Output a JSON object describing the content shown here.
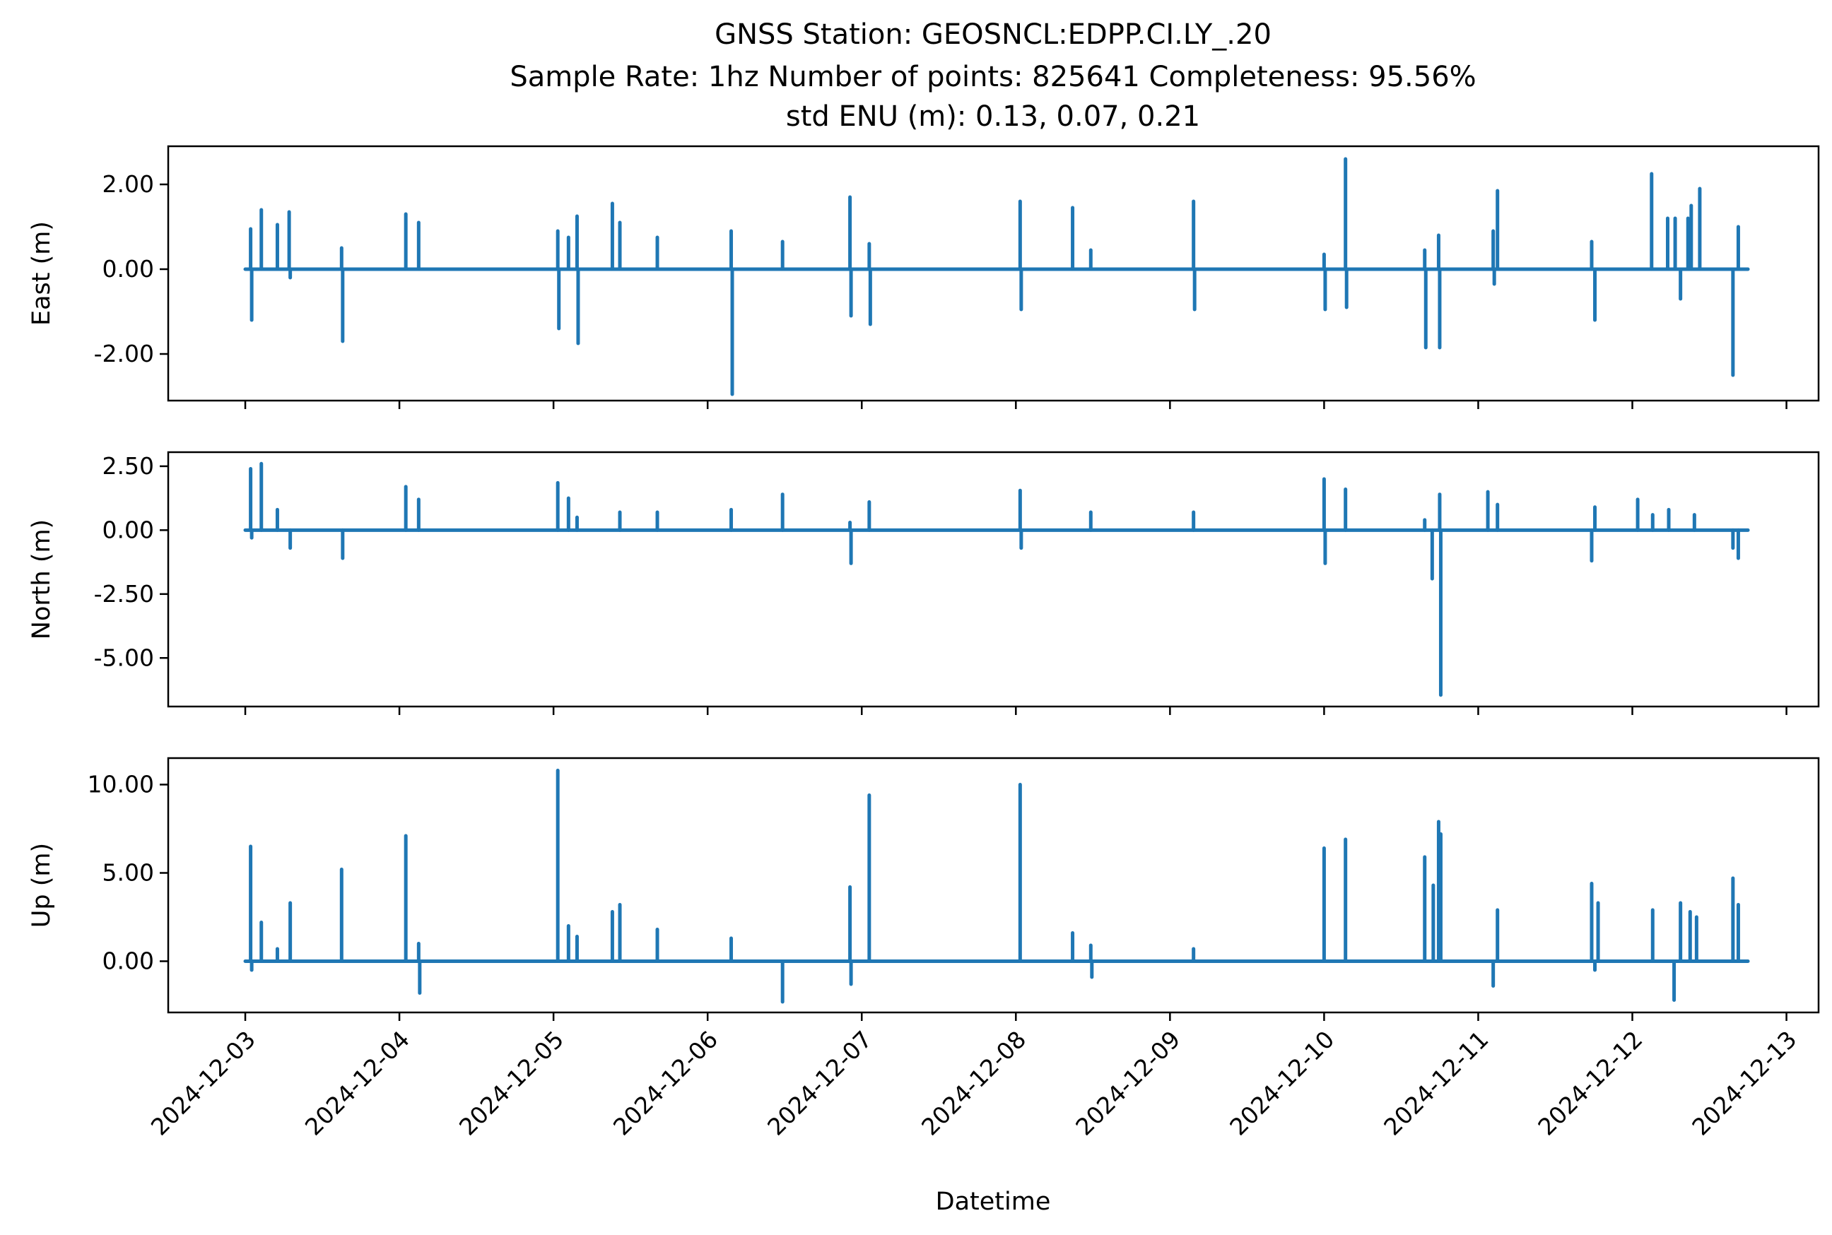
{
  "figure": {
    "title_lines": [
      "GNSS Station: GEOSNCL:EDPP.CI.LY_.20",
      "Sample Rate: 1hz   Number of points: 825641    Completeness:  95.56%",
      "std ENU (m):  0.13, 0.07, 0.21"
    ],
    "xlabel": "Datetime",
    "x_tick_labels": [
      "2024-12-03",
      "2024-12-04",
      "2024-12-05",
      "2024-12-06",
      "2024-12-07",
      "2024-12-08",
      "2024-12-09",
      "2024-12-10",
      "2024-12-11",
      "2024-12-12",
      "2024-12-13"
    ]
  },
  "chart_data": [
    {
      "type": "line",
      "ylabel": "East (m)",
      "xlim": [
        "2024-12-02 12:00",
        "2024-12-13 05:00"
      ],
      "ylim": [
        -3.1,
        2.9
      ],
      "y_tick_values": [
        -2.0,
        0.0,
        2.0
      ],
      "y_tick_labels": [
        "-2.00",
        "0.00",
        "2.00"
      ],
      "line_color": "#1f77b4",
      "x_range": [
        "2024-12-03 00:00",
        "2024-12-12 18:00"
      ],
      "spikes": [
        {
          "t": "2024-12-03 00:50",
          "y": 0.95
        },
        {
          "t": "2024-12-03 01:00",
          "y": -1.2
        },
        {
          "t": "2024-12-03 02:30",
          "y": 1.4
        },
        {
          "t": "2024-12-03 05:00",
          "y": 1.05
        },
        {
          "t": "2024-12-03 06:50",
          "y": 1.35
        },
        {
          "t": "2024-12-03 07:00",
          "y": -0.2
        },
        {
          "t": "2024-12-03 15:00",
          "y": 0.5
        },
        {
          "t": "2024-12-03 15:10",
          "y": -1.7
        },
        {
          "t": "2024-12-04 01:00",
          "y": 1.3
        },
        {
          "t": "2024-12-04 03:00",
          "y": 1.1
        },
        {
          "t": "2024-12-05 00:40",
          "y": 0.9
        },
        {
          "t": "2024-12-05 00:50",
          "y": -1.4
        },
        {
          "t": "2024-12-05 02:20",
          "y": 0.75
        },
        {
          "t": "2024-12-05 03:40",
          "y": 1.25
        },
        {
          "t": "2024-12-05 03:50",
          "y": -1.75
        },
        {
          "t": "2024-12-05 09:10",
          "y": 1.55
        },
        {
          "t": "2024-12-05 10:20",
          "y": 1.1
        },
        {
          "t": "2024-12-05 16:10",
          "y": 0.75
        },
        {
          "t": "2024-12-06 03:40",
          "y": 0.9
        },
        {
          "t": "2024-12-06 03:50",
          "y": -2.95
        },
        {
          "t": "2024-12-06 11:40",
          "y": 0.65
        },
        {
          "t": "2024-12-06 22:10",
          "y": 1.7
        },
        {
          "t": "2024-12-06 22:20",
          "y": -1.1
        },
        {
          "t": "2024-12-07 01:10",
          "y": 0.6
        },
        {
          "t": "2024-12-07 01:20",
          "y": -1.3
        },
        {
          "t": "2024-12-08 00:40",
          "y": 1.6
        },
        {
          "t": "2024-12-08 00:50",
          "y": -0.95
        },
        {
          "t": "2024-12-08 08:50",
          "y": 1.45
        },
        {
          "t": "2024-12-08 11:40",
          "y": 0.45
        },
        {
          "t": "2024-12-09 03:40",
          "y": 1.6
        },
        {
          "t": "2024-12-09 03:50",
          "y": -0.95
        },
        {
          "t": "2024-12-10 00:00",
          "y": 0.35
        },
        {
          "t": "2024-12-10 00:10",
          "y": -0.95
        },
        {
          "t": "2024-12-10 03:20",
          "y": 2.6
        },
        {
          "t": "2024-12-10 03:30",
          "y": -0.9
        },
        {
          "t": "2024-12-10 15:40",
          "y": 0.45
        },
        {
          "t": "2024-12-10 15:50",
          "y": -1.85
        },
        {
          "t": "2024-12-10 17:50",
          "y": 0.8
        },
        {
          "t": "2024-12-10 18:00",
          "y": -1.85
        },
        {
          "t": "2024-12-11 02:20",
          "y": 0.9
        },
        {
          "t": "2024-12-11 02:30",
          "y": -0.35
        },
        {
          "t": "2024-12-11 03:00",
          "y": 1.85
        },
        {
          "t": "2024-12-11 17:40",
          "y": 0.65
        },
        {
          "t": "2024-12-11 18:10",
          "y": -1.2
        },
        {
          "t": "2024-12-12 03:00",
          "y": 2.25
        },
        {
          "t": "2024-12-12 05:30",
          "y": 1.2
        },
        {
          "t": "2024-12-12 06:40",
          "y": 1.2
        },
        {
          "t": "2024-12-12 07:30",
          "y": -0.7
        },
        {
          "t": "2024-12-12 08:40",
          "y": 1.2
        },
        {
          "t": "2024-12-12 09:10",
          "y": 1.5
        },
        {
          "t": "2024-12-12 10:30",
          "y": 1.9
        },
        {
          "t": "2024-12-12 15:40",
          "y": -2.5
        },
        {
          "t": "2024-12-12 16:30",
          "y": 1.0
        }
      ]
    },
    {
      "type": "line",
      "ylabel": "North (m)",
      "xlim": [
        "2024-12-02 12:00",
        "2024-12-13 05:00"
      ],
      "ylim": [
        -6.9,
        3.05
      ],
      "y_tick_values": [
        -5.0,
        -2.5,
        0.0,
        2.5
      ],
      "y_tick_labels": [
        "-5.00",
        "-2.50",
        "0.00",
        "2.50"
      ],
      "line_color": "#1f77b4",
      "x_range": [
        "2024-12-03 00:00",
        "2024-12-12 18:00"
      ],
      "spikes": [
        {
          "t": "2024-12-03 00:50",
          "y": 2.4
        },
        {
          "t": "2024-12-03 01:00",
          "y": -0.3
        },
        {
          "t": "2024-12-03 02:30",
          "y": 2.6
        },
        {
          "t": "2024-12-03 05:00",
          "y": 0.8
        },
        {
          "t": "2024-12-03 07:00",
          "y": -0.7
        },
        {
          "t": "2024-12-03 15:10",
          "y": -1.1
        },
        {
          "t": "2024-12-04 01:00",
          "y": 1.7
        },
        {
          "t": "2024-12-04 03:00",
          "y": 1.2
        },
        {
          "t": "2024-12-05 00:40",
          "y": 1.85
        },
        {
          "t": "2024-12-05 02:20",
          "y": 1.25
        },
        {
          "t": "2024-12-05 03:40",
          "y": 0.5
        },
        {
          "t": "2024-12-05 10:20",
          "y": 0.7
        },
        {
          "t": "2024-12-05 16:10",
          "y": 0.7
        },
        {
          "t": "2024-12-06 03:40",
          "y": 0.8
        },
        {
          "t": "2024-12-06 11:40",
          "y": 1.4
        },
        {
          "t": "2024-12-06 22:10",
          "y": 0.3
        },
        {
          "t": "2024-12-06 22:20",
          "y": -1.3
        },
        {
          "t": "2024-12-07 01:10",
          "y": 1.1
        },
        {
          "t": "2024-12-08 00:40",
          "y": 1.55
        },
        {
          "t": "2024-12-08 00:50",
          "y": -0.7
        },
        {
          "t": "2024-12-08 11:40",
          "y": 0.7
        },
        {
          "t": "2024-12-09 03:40",
          "y": 0.7
        },
        {
          "t": "2024-12-10 00:00",
          "y": 2.0
        },
        {
          "t": "2024-12-10 00:10",
          "y": -1.3
        },
        {
          "t": "2024-12-10 03:20",
          "y": 1.6
        },
        {
          "t": "2024-12-10 15:40",
          "y": 0.4
        },
        {
          "t": "2024-12-10 16:50",
          "y": -1.9
        },
        {
          "t": "2024-12-10 18:00",
          "y": 1.4
        },
        {
          "t": "2024-12-10 18:10",
          "y": -6.45
        },
        {
          "t": "2024-12-11 01:30",
          "y": 1.5
        },
        {
          "t": "2024-12-11 03:00",
          "y": 1.0
        },
        {
          "t": "2024-12-11 17:40",
          "y": -1.2
        },
        {
          "t": "2024-12-11 18:10",
          "y": 0.9
        },
        {
          "t": "2024-12-12 00:50",
          "y": 1.2
        },
        {
          "t": "2024-12-12 03:10",
          "y": 0.6
        },
        {
          "t": "2024-12-12 05:40",
          "y": 0.8
        },
        {
          "t": "2024-12-12 09:40",
          "y": 0.6
        },
        {
          "t": "2024-12-12 15:40",
          "y": -0.7
        },
        {
          "t": "2024-12-12 16:30",
          "y": -1.1
        }
      ]
    },
    {
      "type": "line",
      "ylabel": "Up (m)",
      "xlim": [
        "2024-12-02 12:00",
        "2024-12-13 05:00"
      ],
      "ylim": [
        -2.9,
        11.5
      ],
      "y_tick_values": [
        0.0,
        5.0,
        10.0
      ],
      "y_tick_labels": [
        "0.00",
        "5.00",
        "10.00"
      ],
      "line_color": "#1f77b4",
      "x_range": [
        "2024-12-03 00:00",
        "2024-12-12 18:00"
      ],
      "spikes": [
        {
          "t": "2024-12-03 00:50",
          "y": 6.5
        },
        {
          "t": "2024-12-03 01:00",
          "y": -0.5
        },
        {
          "t": "2024-12-03 02:30",
          "y": 2.2
        },
        {
          "t": "2024-12-03 05:00",
          "y": 0.7
        },
        {
          "t": "2024-12-03 07:00",
          "y": 3.3
        },
        {
          "t": "2024-12-03 15:00",
          "y": 5.2
        },
        {
          "t": "2024-12-04 01:00",
          "y": 7.1
        },
        {
          "t": "2024-12-04 03:00",
          "y": 1.0
        },
        {
          "t": "2024-12-04 03:10",
          "y": -1.8
        },
        {
          "t": "2024-12-05 00:40",
          "y": 10.8
        },
        {
          "t": "2024-12-05 02:20",
          "y": 2.0
        },
        {
          "t": "2024-12-05 03:40",
          "y": 1.4
        },
        {
          "t": "2024-12-05 09:10",
          "y": 2.8
        },
        {
          "t": "2024-12-05 10:20",
          "y": 3.2
        },
        {
          "t": "2024-12-05 16:10",
          "y": 1.8
        },
        {
          "t": "2024-12-06 03:40",
          "y": 1.3
        },
        {
          "t": "2024-12-06 11:40",
          "y": -2.3
        },
        {
          "t": "2024-12-06 22:10",
          "y": 4.2
        },
        {
          "t": "2024-12-06 22:20",
          "y": -1.3
        },
        {
          "t": "2024-12-07 01:10",
          "y": 9.4
        },
        {
          "t": "2024-12-08 00:40",
          "y": 10.0
        },
        {
          "t": "2024-12-08 08:50",
          "y": 1.6
        },
        {
          "t": "2024-12-08 11:40",
          "y": 0.9
        },
        {
          "t": "2024-12-08 11:50",
          "y": -0.9
        },
        {
          "t": "2024-12-09 03:40",
          "y": 0.7
        },
        {
          "t": "2024-12-10 00:00",
          "y": 6.4
        },
        {
          "t": "2024-12-10 03:20",
          "y": 6.9
        },
        {
          "t": "2024-12-10 15:40",
          "y": 5.9
        },
        {
          "t": "2024-12-10 17:00",
          "y": 4.3
        },
        {
          "t": "2024-12-10 17:50",
          "y": 7.9
        },
        {
          "t": "2024-12-10 18:10",
          "y": 7.2
        },
        {
          "t": "2024-12-11 02:20",
          "y": -1.4
        },
        {
          "t": "2024-12-11 03:00",
          "y": 2.9
        },
        {
          "t": "2024-12-11 17:40",
          "y": 4.4
        },
        {
          "t": "2024-12-11 18:10",
          "y": -0.5
        },
        {
          "t": "2024-12-11 18:40",
          "y": 3.3
        },
        {
          "t": "2024-12-12 03:10",
          "y": 2.9
        },
        {
          "t": "2024-12-12 06:30",
          "y": -2.2
        },
        {
          "t": "2024-12-12 07:30",
          "y": 3.3
        },
        {
          "t": "2024-12-12 09:00",
          "y": 2.8
        },
        {
          "t": "2024-12-12 10:00",
          "y": 2.5
        },
        {
          "t": "2024-12-12 15:40",
          "y": 4.7
        },
        {
          "t": "2024-12-12 16:30",
          "y": 3.2
        }
      ]
    }
  ]
}
